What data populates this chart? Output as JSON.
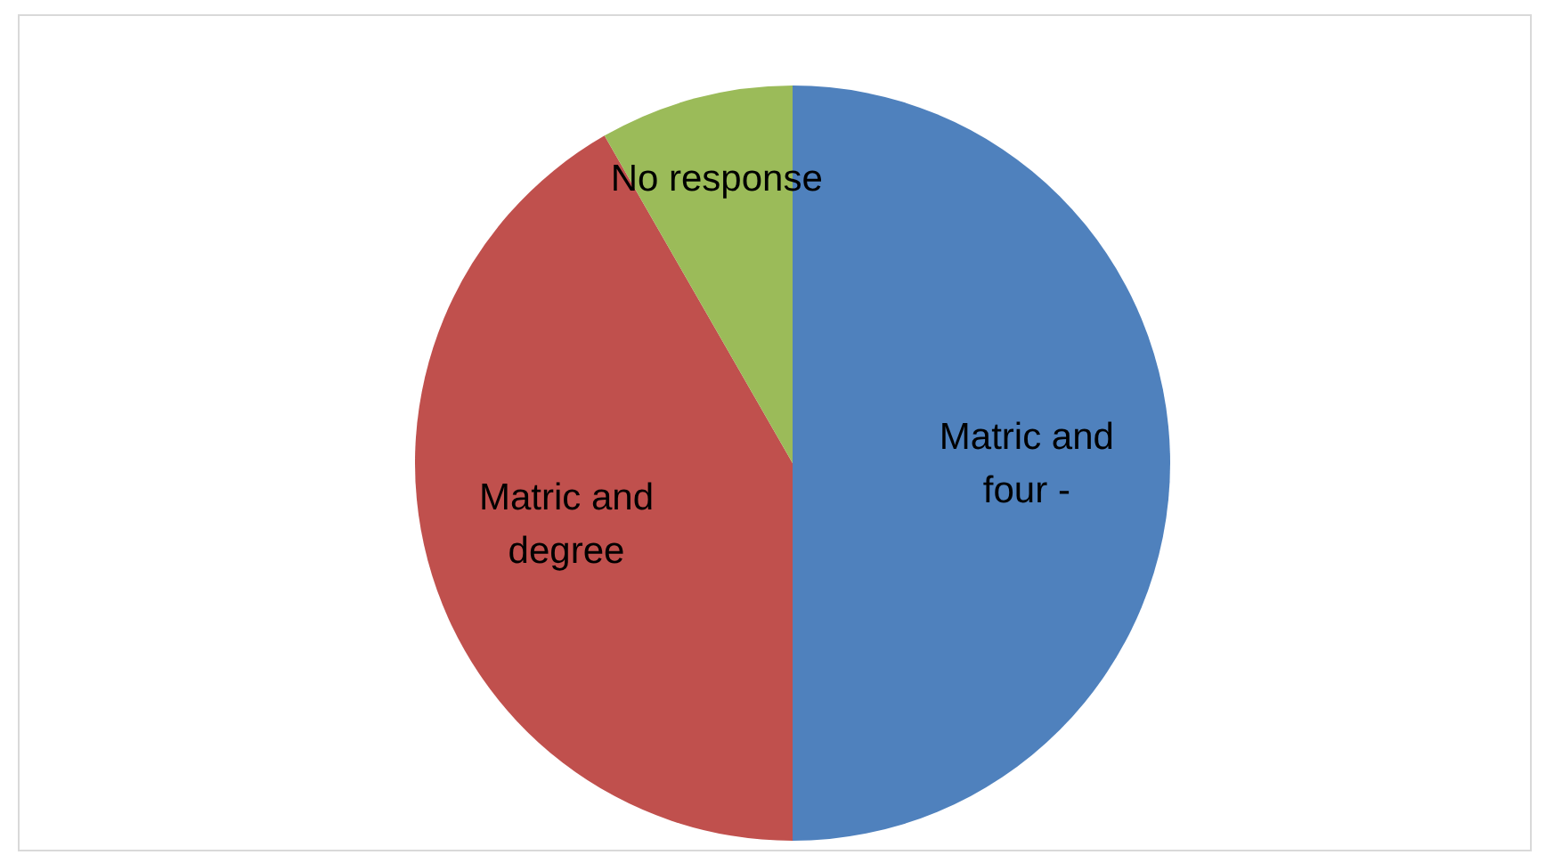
{
  "chart_data": {
    "type": "pie",
    "categories": [
      "Matric and four -",
      "Matric and degree",
      "No response"
    ],
    "values": [
      50,
      41.7,
      8.3
    ],
    "colors": [
      "#4f81bd",
      "#c0504d",
      "#9bbb59"
    ]
  }
}
